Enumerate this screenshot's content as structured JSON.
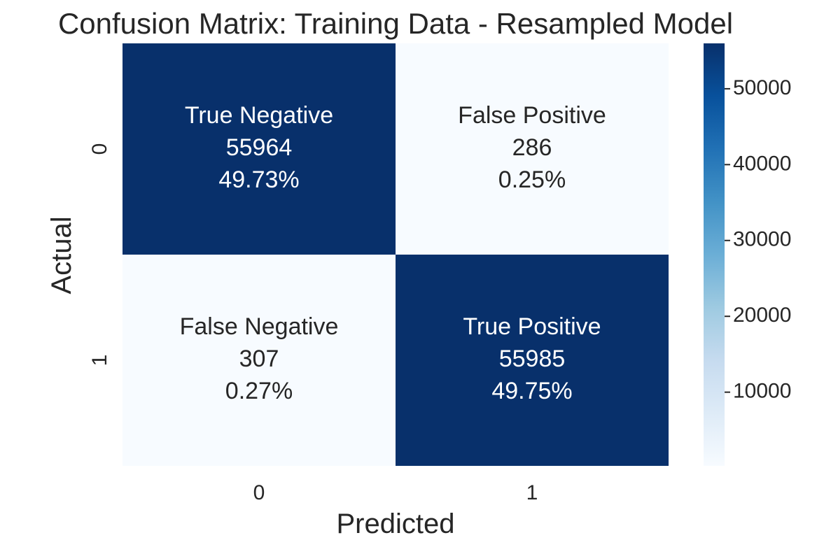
{
  "chart_data": {
    "type": "heatmap",
    "title": "Confusion Matrix: Training Data - Resampled Model",
    "xlabel": "Predicted",
    "ylabel": "Actual",
    "x_categories": [
      "0",
      "1"
    ],
    "y_categories": [
      "0",
      "1"
    ],
    "cells": [
      {
        "row": 0,
        "col": 0,
        "name": "True Negative",
        "count_label": "55964",
        "percent_label": "49.73%",
        "value": 55964,
        "percent": 49.73
      },
      {
        "row": 0,
        "col": 1,
        "name": "False Positive",
        "count_label": "286",
        "percent_label": "0.25%",
        "value": 286,
        "percent": 0.25
      },
      {
        "row": 1,
        "col": 0,
        "name": "False Negative",
        "count_label": "307",
        "percent_label": "0.27%",
        "value": 307,
        "percent": 0.27
      },
      {
        "row": 1,
        "col": 1,
        "name": "True Positive",
        "count_label": "55985",
        "percent_label": "49.75%",
        "value": 55985,
        "percent": 49.75
      }
    ],
    "colorbar": {
      "vmin": 286,
      "vmax": 55985,
      "ticks": [
        10000,
        20000,
        30000,
        40000,
        50000
      ],
      "tick_labels": [
        "10000",
        "20000",
        "30000",
        "40000",
        "50000"
      ],
      "colormap": "Blues",
      "low_color": "#f7fbff",
      "high_color": "#08306b"
    },
    "grid": false,
    "legend": "colorbar-right"
  }
}
